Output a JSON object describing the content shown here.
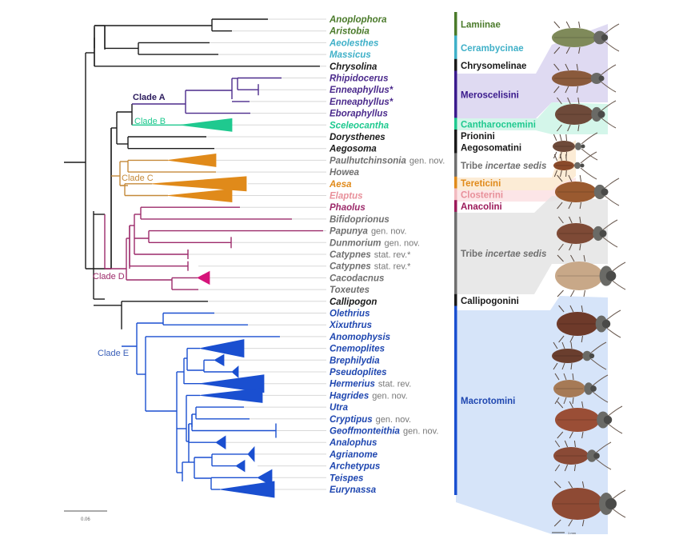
{
  "figure": {
    "type": "phylogenetic-tree",
    "scale_bar_label": "0.06",
    "specimen_scale_label": "1 mm"
  },
  "colors": {
    "black": "#1a1a1a",
    "lamiinae": "#4a7a2a",
    "cerambycinae": "#3fb0c8",
    "clade_a": "#4b2a8c",
    "clade_b": "#1fc98f",
    "clade_c": "#c58a3a",
    "clade_c_tip": "#e08a1a",
    "elaptus": "#e8909a",
    "clade_d": "#9c2a6a",
    "gray_text": "#6f6f6f",
    "clade_e": "#1a4fd0",
    "clade_e_text": "#1f47b0",
    "guide": "#d8d8d8"
  },
  "tips": [
    {
      "name": "Anoplophora",
      "suffix": "",
      "color": "#4a7a2a"
    },
    {
      "name": "Aristobia",
      "suffix": "",
      "color": "#4a7a2a"
    },
    {
      "name": "Aeolesthes",
      "suffix": "",
      "color": "#3fb0c8"
    },
    {
      "name": "Massicus",
      "suffix": "",
      "color": "#3fb0c8"
    },
    {
      "name": "Chrysolina",
      "suffix": "",
      "color": "#1a1a1a"
    },
    {
      "name": "Rhipidocerus",
      "suffix": "",
      "color": "#4b2a8c"
    },
    {
      "name": "Enneaphyllus*",
      "suffix": "",
      "color": "#4b2a8c"
    },
    {
      "name": "Enneaphyllus*",
      "suffix": "",
      "color": "#4b2a8c"
    },
    {
      "name": "Eboraphyllus",
      "suffix": "",
      "color": "#4b2a8c"
    },
    {
      "name": "Sceleocantha",
      "suffix": "",
      "color": "#1fc98f"
    },
    {
      "name": "Dorysthenes",
      "suffix": "",
      "color": "#1a1a1a"
    },
    {
      "name": "Aegosoma",
      "suffix": "",
      "color": "#1a1a1a"
    },
    {
      "name": "Paulhutchinsonia",
      "suffix": "gen. nov.",
      "color": "#6f6f6f"
    },
    {
      "name": "Howea",
      "suffix": "",
      "color": "#6f6f6f"
    },
    {
      "name": "Aesa",
      "suffix": "",
      "color": "#e08a1a"
    },
    {
      "name": "Elaptus",
      "suffix": "",
      "color": "#e8909a"
    },
    {
      "name": "Phaolus",
      "suffix": "",
      "color": "#9c2a6a"
    },
    {
      "name": "Bifidoprionus",
      "suffix": "",
      "color": "#6f6f6f"
    },
    {
      "name": "Papunya",
      "suffix": "gen. nov.",
      "color": "#6f6f6f"
    },
    {
      "name": "Dunmorium",
      "suffix": "gen. nov.",
      "color": "#6f6f6f"
    },
    {
      "name": "Catypnes",
      "suffix": "stat. rev.*",
      "color": "#6f6f6f"
    },
    {
      "name": "Catypnes",
      "suffix": "stat. rev.*",
      "color": "#6f6f6f"
    },
    {
      "name": "Cacodacnus",
      "suffix": "",
      "color": "#6f6f6f"
    },
    {
      "name": "Toxeutes",
      "suffix": "",
      "color": "#6f6f6f"
    },
    {
      "name": "Callipogon",
      "suffix": "",
      "color": "#1a1a1a"
    },
    {
      "name": "Olethrius",
      "suffix": "",
      "color": "#1f47b0"
    },
    {
      "name": "Xixuthrus",
      "suffix": "",
      "color": "#1f47b0"
    },
    {
      "name": "Anomophysis",
      "suffix": "",
      "color": "#1f47b0"
    },
    {
      "name": "Cnemoplites",
      "suffix": "",
      "color": "#1f47b0"
    },
    {
      "name": "Brephilydia",
      "suffix": "",
      "color": "#1f47b0"
    },
    {
      "name": "Pseudoplites",
      "suffix": "",
      "color": "#1f47b0"
    },
    {
      "name": "Hermerius",
      "suffix": "stat. rev.",
      "color": "#1f47b0"
    },
    {
      "name": "Hagrides",
      "suffix": "gen. nov.",
      "color": "#1f47b0"
    },
    {
      "name": "Utra",
      "suffix": "",
      "color": "#1f47b0"
    },
    {
      "name": "Cryptipus",
      "suffix": "gen. nov.",
      "color": "#1f47b0"
    },
    {
      "name": "Geoffmonteithia",
      "suffix": "gen. nov.",
      "color": "#1f47b0"
    },
    {
      "name": "Analophus",
      "suffix": "",
      "color": "#1f47b0"
    },
    {
      "name": "Agrianome",
      "suffix": "",
      "color": "#1f47b0"
    },
    {
      "name": "Archetypus",
      "suffix": "",
      "color": "#1f47b0"
    },
    {
      "name": "Teispes",
      "suffix": "",
      "color": "#1f47b0"
    },
    {
      "name": "Eurynassa",
      "suffix": "",
      "color": "#1f47b0"
    }
  ],
  "clades": [
    {
      "label": "Clade A",
      "color": "#2a1a5c"
    },
    {
      "label": "Clade B",
      "color": "#1fc98f"
    },
    {
      "label": "Clade C",
      "color": "#c58a3a"
    },
    {
      "label": "Clade D",
      "color": "#9c2a6a"
    },
    {
      "label": "Clade E",
      "color": "#3a5fb8"
    }
  ],
  "groups": [
    {
      "label": "Lamiinae",
      "italic_part": "",
      "text_color": "#4a7a2a",
      "bar_color": "#4a7a2a",
      "band_color": "",
      "from_tip": 0,
      "to_tip": 1
    },
    {
      "label": "Cerambycinae",
      "italic_part": "",
      "text_color": "#3fb0c8",
      "bar_color": "#3fb0c8",
      "band_color": "",
      "from_tip": 2,
      "to_tip": 3
    },
    {
      "label": "Chrysomelinae",
      "italic_part": "",
      "text_color": "#1a1a1a",
      "bar_color": "#1a1a1a",
      "band_color": "",
      "from_tip": 4,
      "to_tip": 4
    },
    {
      "label": "Meroscelisini",
      "italic_part": "",
      "text_color": "#3a1a8c",
      "bar_color": "#3a1a8c",
      "band_color": "#d9d3f0",
      "from_tip": 5,
      "to_tip": 8
    },
    {
      "label": "Cantharocnemini",
      "italic_part": "",
      "text_color": "#1fc98f",
      "bar_color": "#1fc98f",
      "band_color": "#cdf5e6",
      "from_tip": 9,
      "to_tip": 9
    },
    {
      "label": "Prionini",
      "italic_part": "",
      "text_color": "#1a1a1a",
      "bar_color": "#1a1a1a",
      "band_color": "",
      "from_tip": 10,
      "to_tip": 10
    },
    {
      "label": "Aegosomatini",
      "italic_part": "",
      "text_color": "#1a1a1a",
      "bar_color": "#1a1a1a",
      "band_color": "",
      "from_tip": 11,
      "to_tip": 11
    },
    {
      "label": "Tribe ",
      "italic_part": "incertae sedis",
      "text_color": "#6f6f6f",
      "bar_color": "#6f6f6f",
      "band_color": "",
      "from_tip": 12,
      "to_tip": 13
    },
    {
      "label": "Tereticini",
      "italic_part": "",
      "text_color": "#e08a1a",
      "bar_color": "#e08a1a",
      "band_color": "#fbe9cf",
      "from_tip": 14,
      "to_tip": 14
    },
    {
      "label": "Closterini",
      "italic_part": "",
      "text_color": "#e8909a",
      "bar_color": "#f2b9bf",
      "band_color": "#fbe0e3",
      "from_tip": 15,
      "to_tip": 15
    },
    {
      "label": "Anacolini",
      "italic_part": "",
      "text_color": "#9c1a5a",
      "bar_color": "#9c1a5a",
      "band_color": "",
      "from_tip": 16,
      "to_tip": 16
    },
    {
      "label": "Tribe ",
      "italic_part": "incertae sedis",
      "text_color": "#6f6f6f",
      "bar_color": "#6f6f6f",
      "band_color": "#e4e4e4",
      "from_tip": 17,
      "to_tip": 23
    },
    {
      "label": "Callipogonini",
      "italic_part": "",
      "text_color": "#1a1a1a",
      "bar_color": "#1a1a1a",
      "band_color": "",
      "from_tip": 24,
      "to_tip": 24
    },
    {
      "label": "Macrotomini",
      "italic_part": "",
      "text_color": "#1f47b0",
      "bar_color": "#1a4fd0",
      "band_color": "#cfdff8",
      "from_tip": 25,
      "to_tip": 40
    }
  ],
  "specimens": [
    {
      "subject": "Lamiinae beetle",
      "body_color": "#7f8a5a"
    },
    {
      "subject": "Meroscelisini beetle",
      "body_color": "#8a5a3c"
    },
    {
      "subject": "Cantharocnemini beetle",
      "body_color": "#6e4a3a"
    },
    {
      "subject": "Prionini beetle",
      "body_color": "#6e4a3a"
    },
    {
      "subject": "Aegosomatini beetle",
      "body_color": "#8a4a2a"
    },
    {
      "subject": "Tereticini beetle",
      "body_color": "#9a5a30"
    },
    {
      "subject": "incertae sedis beetle 1",
      "body_color": "#7e4a36"
    },
    {
      "subject": "incertae sedis beetle 2",
      "body_color": "#c8a888"
    },
    {
      "subject": "Callipogonini beetle",
      "body_color": "#6e3a2a"
    },
    {
      "subject": "Macrotomini beetle 1",
      "body_color": "#6a3e2e"
    },
    {
      "subject": "Macrotomini beetle 2",
      "body_color": "#a67a56"
    },
    {
      "subject": "Macrotomini beetle 3",
      "body_color": "#9a4e36"
    },
    {
      "subject": "Macrotomini beetle 4",
      "body_color": "#8a4a36"
    },
    {
      "subject": "Macrotomini beetle 5",
      "body_color": "#8e4a34"
    }
  ]
}
